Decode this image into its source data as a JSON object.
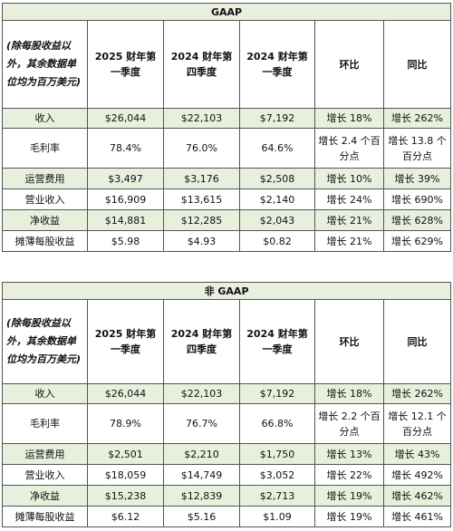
{
  "gaap": {
    "title": "GAAP",
    "headers": [
      "(除每股收益以外，其余数据单位均为百万美元)",
      "2025 财年第一季度",
      "2024 财年第四季度",
      "2024 财年第一季度",
      "环比",
      "同比"
    ],
    "rows": [
      [
        "收入",
        "$26,044",
        "$22,103",
        "$7,192",
        "增长 18%",
        "增长 262%"
      ],
      [
        "毛利率",
        "78.4%",
        "76.0%",
        "64.6%",
        "增长 2.4 个百分点",
        "增长 13.8 个百分点"
      ],
      [
        "运营费用",
        "$3,497",
        "$3,176",
        "$2,508",
        "增长 10%",
        "增长 39%"
      ],
      [
        "营业收入",
        "$16,909",
        "$13,615",
        "$2,140",
        "增长 24%",
        "增长 690%"
      ],
      [
        "净收益",
        "$14,881",
        "$12,285",
        "$2,043",
        "增长 21%",
        "增长 628%"
      ],
      [
        "摊薄每股收益",
        "$5.98",
        "$4.93",
        "$0.82",
        "增长 21%",
        "增长 629%"
      ]
    ]
  },
  "non_gaap": {
    "title": "非 GAAP",
    "headers": [
      "(除每股收益以外，其余数据单位均为百万美元)",
      "2025 财年第一季度",
      "2024 财年第四季度",
      "2024 财年第一季度",
      "环比",
      "同比"
    ],
    "rows": [
      [
        "收入",
        "$26,044",
        "$22,103",
        "$7,192",
        "增长 18%",
        "增长 262%"
      ],
      [
        "毛利率",
        "78.9%",
        "76.7%",
        "66.8%",
        "增长 2.2 个百分点",
        "增长 12.1 个百分点"
      ],
      [
        "运营费用",
        "$2,501",
        "$2,210",
        "$1,750",
        "增长 13%",
        "增长 43%"
      ],
      [
        "营业收入",
        "$18,059",
        "$14,749",
        "$3,052",
        "增长 22%",
        "增长 492%"
      ],
      [
        "净收益",
        "$15,238",
        "$12,839",
        "$2,713",
        "增长 19%",
        "增长 462%"
      ],
      [
        "摊薄每股收益",
        "$6.12",
        "$5.16",
        "$1.09",
        "增长 19%",
        "增长 461%"
      ]
    ]
  }
}
